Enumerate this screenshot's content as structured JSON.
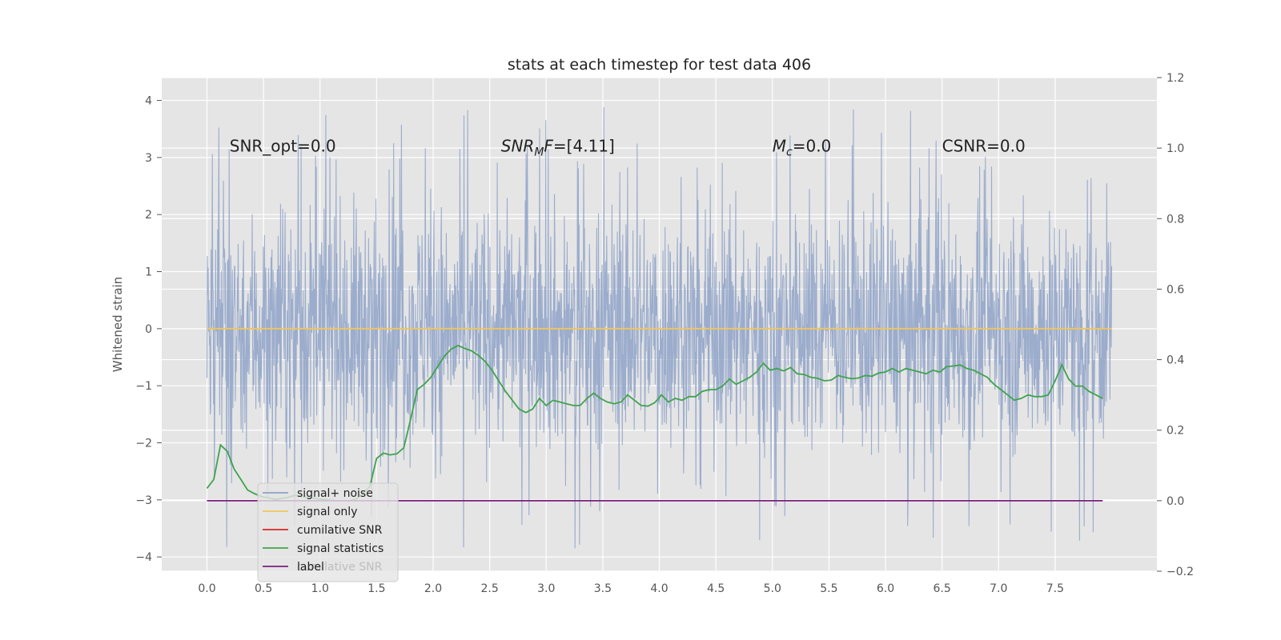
{
  "chart_data": {
    "type": "line",
    "title": "stats at each timestep for test data 406",
    "ylabel": "Whitened strain",
    "xlabel": "",
    "xlim": [
      -0.4,
      8.4
    ],
    "ylim": [
      -4.25,
      4.4
    ],
    "y2lim": [
      -0.2,
      1.2
    ],
    "grid": true,
    "x_ticks": [
      "0.0",
      "0.5",
      "1.0",
      "1.5",
      "2.0",
      "2.5",
      "3.0",
      "3.5",
      "4.0",
      "4.5",
      "5.0",
      "5.5",
      "6.0",
      "6.5",
      "7.0",
      "7.5"
    ],
    "y_ticks": [
      "−4",
      "−3",
      "−2",
      "−1",
      "0",
      "1",
      "2",
      "3",
      "4"
    ],
    "y2_ticks": [
      "−0.2",
      "0.0",
      "0.2",
      "0.4",
      "0.6",
      "0.8",
      "1.0",
      "1.2"
    ],
    "annotations": [
      {
        "text": "SNR_opt=0.0",
        "x": 0.2,
        "y": 3.2
      },
      {
        "text": "SNR",
        "sub": "M",
        "tail": "F=[4.11]",
        "x": 2.6,
        "y": 3.2
      },
      {
        "text": "M",
        "sub": "c",
        "tail": "=0.0",
        "x": 5.0,
        "y": 3.2
      },
      {
        "text": "CSNR=0.0",
        "x": 6.5,
        "y": 3.2
      }
    ],
    "legend": {
      "placement": "lower-left",
      "entries": [
        {
          "label": "signal+ noise",
          "color": "#8ea2c8"
        },
        {
          "label": "signal only",
          "color": "#f2c55c"
        },
        {
          "label": "cumilative SNR",
          "color": "#d62728"
        },
        {
          "label": "signal statistics",
          "color": "#3fa34d"
        },
        {
          "label": "label",
          "color": "#7b1f7b"
        },
        {
          "label": "cumilative SNR",
          "color": "#d62728",
          "hidden_behind": true
        }
      ]
    },
    "series": [
      {
        "name": "signal+ noise",
        "axis": "left",
        "color": "#8ea2c8",
        "description": "dense noisy strain samples from t=0 to t=8, amplitude roughly within [-3.9, 4.0]",
        "t_range": [
          0.0,
          8.0
        ],
        "envelope_upper": 2.2,
        "envelope_lower": -2.1,
        "peak_max": 4.02,
        "peak_min": -3.88
      },
      {
        "name": "signal only",
        "axis": "left",
        "color": "#f2c55c",
        "x": [
          0.0,
          8.0
        ],
        "values": [
          0.0,
          0.0
        ]
      },
      {
        "name": "signal statistics",
        "axis": "right",
        "color": "#3fa34d",
        "x": [
          0.0,
          0.06,
          0.12,
          0.18,
          0.24,
          0.3,
          0.36,
          0.42,
          0.48,
          0.54,
          0.6,
          0.66,
          0.72,
          0.78,
          0.84,
          0.9,
          0.96,
          1.02,
          1.08,
          1.14,
          1.2,
          1.26,
          1.32,
          1.38,
          1.44,
          1.5,
          1.56,
          1.62,
          1.68,
          1.74,
          1.8,
          1.86,
          1.92,
          1.98,
          2.04,
          2.1,
          2.16,
          2.22,
          2.28,
          2.34,
          2.4,
          2.46,
          2.52,
          2.58,
          2.64,
          2.7,
          2.76,
          2.82,
          2.88,
          2.94,
          3.0,
          3.06,
          3.12,
          3.18,
          3.24,
          3.3,
          3.36,
          3.42,
          3.48,
          3.54,
          3.6,
          3.66,
          3.72,
          3.78,
          3.84,
          3.9,
          3.96,
          4.02,
          4.08,
          4.14,
          4.2,
          4.26,
          4.32,
          4.38,
          4.44,
          4.5,
          4.56,
          4.62,
          4.68,
          4.74,
          4.8,
          4.86,
          4.92,
          4.98,
          5.04,
          5.1,
          5.16,
          5.22,
          5.28,
          5.34,
          5.4,
          5.46,
          5.52,
          5.58,
          5.64,
          5.7,
          5.76,
          5.82,
          5.88,
          5.94,
          6.0,
          6.06,
          6.12,
          6.18,
          6.24,
          6.3,
          6.36,
          6.42,
          6.48,
          6.54,
          6.6,
          6.66,
          6.72,
          6.78,
          6.84,
          6.9,
          6.96,
          7.02,
          7.08,
          7.14,
          7.2,
          7.26,
          7.32,
          7.38,
          7.44,
          7.5,
          7.56,
          7.62,
          7.68,
          7.74,
          7.8,
          7.86,
          7.92
        ],
        "values": [
          0.035,
          0.06,
          0.158,
          0.14,
          0.09,
          0.06,
          0.03,
          0.02,
          0.012,
          0.008,
          0.004,
          0.006,
          0.01,
          0.015,
          0.012,
          0.008,
          0.006,
          0.004,
          0.002,
          0.0,
          0.0,
          0.0,
          0.005,
          0.02,
          0.04,
          0.12,
          0.135,
          0.13,
          0.133,
          0.15,
          0.23,
          0.315,
          0.33,
          0.35,
          0.38,
          0.41,
          0.43,
          0.44,
          0.432,
          0.425,
          0.412,
          0.395,
          0.37,
          0.34,
          0.31,
          0.285,
          0.26,
          0.25,
          0.26,
          0.29,
          0.27,
          0.285,
          0.28,
          0.275,
          0.27,
          0.27,
          0.29,
          0.305,
          0.29,
          0.28,
          0.275,
          0.28,
          0.3,
          0.285,
          0.27,
          0.268,
          0.278,
          0.3,
          0.28,
          0.29,
          0.285,
          0.295,
          0.295,
          0.31,
          0.315,
          0.315,
          0.325,
          0.345,
          0.33,
          0.34,
          0.35,
          0.365,
          0.39,
          0.37,
          0.375,
          0.368,
          0.378,
          0.36,
          0.358,
          0.35,
          0.347,
          0.34,
          0.342,
          0.355,
          0.35,
          0.346,
          0.348,
          0.355,
          0.353,
          0.362,
          0.365,
          0.375,
          0.365,
          0.375,
          0.37,
          0.365,
          0.36,
          0.37,
          0.365,
          0.38,
          0.382,
          0.385,
          0.375,
          0.37,
          0.36,
          0.35,
          0.33,
          0.315,
          0.3,
          0.285,
          0.29,
          0.3,
          0.295,
          0.295,
          0.3,
          0.34,
          0.385,
          0.345,
          0.325,
          0.325,
          0.31,
          0.3,
          0.29
        ]
      },
      {
        "name": "label",
        "axis": "right",
        "color": "#7b1f7b",
        "x": [
          0.0,
          7.92
        ],
        "values": [
          0.0,
          0.0
        ]
      }
    ]
  }
}
